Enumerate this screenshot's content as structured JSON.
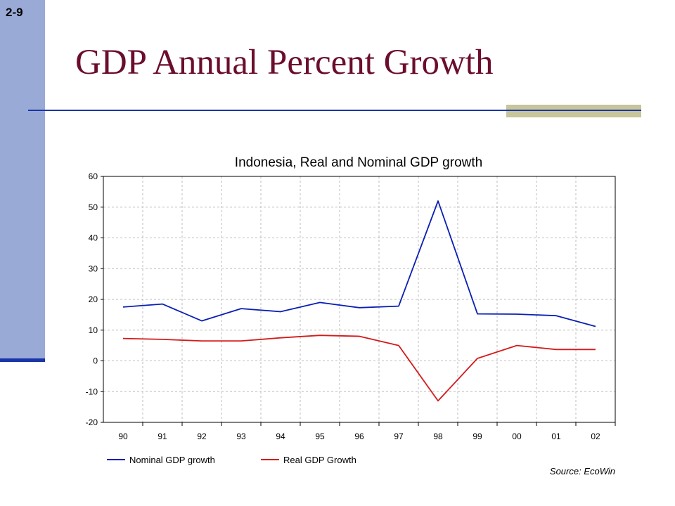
{
  "slide": {
    "number": "2-9",
    "title": "GDP Annual Percent Growth"
  },
  "chart_data": {
    "type": "line",
    "title": "Indonesia, Real and Nominal GDP growth",
    "xlabel": "",
    "ylabel": "",
    "categories": [
      "90",
      "91",
      "92",
      "93",
      "94",
      "95",
      "96",
      "97",
      "98",
      "99",
      "00",
      "01",
      "02"
    ],
    "yticks": [
      "60",
      "50",
      "40",
      "30",
      "20",
      "10",
      "0",
      "-10",
      "-20"
    ],
    "ylim": [
      -20,
      60
    ],
    "grid": true,
    "legend_position": "bottom-left",
    "series": [
      {
        "name": "Nominal GDP growth",
        "color": "#0a1fb4",
        "values": [
          17.5,
          18.5,
          13,
          17,
          16,
          19,
          17.3,
          17.8,
          52,
          15.3,
          15.2,
          14.7,
          11.2
        ]
      },
      {
        "name": "Real GDP Growth",
        "color": "#d41a1a",
        "values": [
          7.3,
          7,
          6.5,
          6.5,
          7.5,
          8.3,
          8,
          5,
          -13,
          0.8,
          5,
          3.7,
          3.7
        ]
      }
    ],
    "source": "Source: EcoWin"
  }
}
